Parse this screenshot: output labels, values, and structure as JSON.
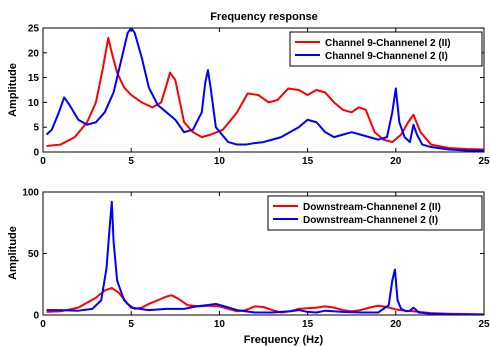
{
  "title": "Frequency response",
  "chart_data": [
    {
      "type": "line",
      "title": "Frequency response",
      "xlabel": "",
      "ylabel": "Amplitude",
      "xlim": [
        0,
        25
      ],
      "ylim": [
        0,
        25
      ],
      "xticks": [
        "0",
        "5",
        "10",
        "15",
        "20",
        "25"
      ],
      "yticks": [
        "0",
        "5",
        "10",
        "15",
        "20",
        "25"
      ],
      "grid": false,
      "legend": "top-right",
      "series": [
        {
          "name": "Channel 9-Channenel 2 (II)",
          "color": "#ff0000",
          "x": [
            0.2,
            1.0,
            1.8,
            2.5,
            3.0,
            3.4,
            3.7,
            3.9,
            4.2,
            4.6,
            5.0,
            5.6,
            6.2,
            6.7,
            7.0,
            7.2,
            7.5,
            8.0,
            8.5,
            9.0,
            9.5,
            10.2,
            11.0,
            11.6,
            12.2,
            12.8,
            13.3,
            13.9,
            14.5,
            15.0,
            15.5,
            16.0,
            16.5,
            17.0,
            17.5,
            17.9,
            18.3,
            18.8,
            19.3,
            19.8,
            20.3,
            20.7,
            21.0,
            21.4,
            22.0,
            23.0,
            24.0,
            25.0
          ],
          "y": [
            1.2,
            1.5,
            3.0,
            6.0,
            10.0,
            17.0,
            23.0,
            20.0,
            16.0,
            13.0,
            11.5,
            10.0,
            9.0,
            10.0,
            13.5,
            16.0,
            14.5,
            6.0,
            4.0,
            3.0,
            3.5,
            4.5,
            8.0,
            11.8,
            11.5,
            10.0,
            10.5,
            12.8,
            12.5,
            11.5,
            12.5,
            12.0,
            10.0,
            8.5,
            8.0,
            9.0,
            8.5,
            4.0,
            2.5,
            2.0,
            3.5,
            6.0,
            7.5,
            4.0,
            1.5,
            0.8,
            0.6,
            0.5
          ]
        },
        {
          "name": "Channel 9-Channenel 2 (I)",
          "color": "#0000ff",
          "x": [
            0.2,
            0.5,
            0.9,
            1.2,
            1.5,
            2.0,
            2.5,
            3.0,
            3.5,
            4.0,
            4.4,
            4.8,
            5.0,
            5.2,
            5.6,
            6.0,
            6.5,
            7.0,
            7.5,
            8.0,
            8.5,
            9.0,
            9.2,
            9.35,
            9.5,
            9.8,
            10.5,
            11.0,
            11.5,
            12.0,
            12.5,
            13.0,
            13.5,
            14.0,
            14.5,
            15.0,
            15.5,
            16.0,
            16.5,
            17.0,
            17.5,
            18.0,
            18.5,
            19.0,
            19.5,
            19.8,
            20.0,
            20.2,
            20.5,
            20.8,
            21.0,
            21.2,
            21.5,
            22.0,
            23.0,
            24.0,
            25.0
          ],
          "y": [
            3.5,
            4.5,
            8.0,
            11.0,
            9.5,
            6.5,
            5.5,
            6.0,
            8.0,
            12.0,
            18.0,
            24.0,
            25.0,
            24.0,
            19.0,
            13.0,
            9.5,
            8.0,
            6.5,
            4.0,
            4.5,
            8.0,
            14.0,
            16.5,
            13.0,
            5.0,
            2.0,
            1.5,
            1.5,
            1.8,
            2.0,
            2.5,
            3.0,
            4.0,
            5.0,
            6.5,
            6.0,
            4.0,
            3.0,
            3.5,
            4.0,
            3.5,
            3.0,
            2.5,
            3.0,
            8.0,
            12.8,
            6.0,
            3.0,
            2.0,
            5.5,
            3.5,
            1.5,
            1.0,
            0.5,
            0.3,
            0.3
          ]
        }
      ]
    },
    {
      "type": "line",
      "title": "",
      "xlabel": "Frequency (Hz)",
      "ylabel": "Amplitude",
      "xlim": [
        0,
        25
      ],
      "ylim": [
        0,
        100
      ],
      "xticks": [
        "0",
        "5",
        "10",
        "15",
        "20",
        "25"
      ],
      "yticks": [
        "0",
        "50",
        "100"
      ],
      "grid": false,
      "legend": "top-right",
      "series": [
        {
          "name": "Downstream-Channenel 2 (II)",
          "color": "#ff0000",
          "x": [
            0.2,
            1.0,
            2.0,
            3.0,
            3.5,
            3.9,
            4.3,
            4.8,
            5.2,
            5.6,
            6.0,
            6.5,
            7.0,
            7.3,
            7.7,
            8.2,
            8.8,
            9.4,
            10.0,
            10.5,
            11.0,
            11.5,
            12.0,
            12.5,
            13.0,
            13.5,
            14.0,
            14.5,
            15.0,
            15.5,
            16.0,
            16.5,
            17.0,
            17.5,
            18.0,
            18.5,
            19.0,
            19.5,
            20.0,
            20.5,
            21.0,
            22.0,
            23.0,
            24.0,
            25.0
          ],
          "y": [
            2.5,
            3.0,
            6.0,
            14.0,
            20.0,
            22.0,
            18.0,
            9.0,
            5.0,
            6.0,
            9.0,
            12.0,
            15.0,
            16.0,
            13.0,
            8.0,
            7.0,
            7.5,
            7.0,
            5.0,
            3.0,
            4.0,
            7.0,
            6.5,
            4.0,
            2.0,
            3.0,
            5.0,
            5.5,
            6.0,
            7.0,
            6.0,
            4.0,
            3.0,
            4.0,
            6.0,
            7.5,
            6.5,
            4.5,
            3.5,
            3.0,
            1.5,
            1.0,
            0.8,
            0.5
          ]
        },
        {
          "name": "Downstream-Channenel 2 (I)",
          "color": "#0000ff",
          "x": [
            0.2,
            1.0,
            2.0,
            2.8,
            3.3,
            3.6,
            3.8,
            3.9,
            4.0,
            4.2,
            4.6,
            5.0,
            6.0,
            7.0,
            8.0,
            8.7,
            9.3,
            9.8,
            10.3,
            11.0,
            12.0,
            13.0,
            14.0,
            14.5,
            15.0,
            15.5,
            16.0,
            17.0,
            18.0,
            19.0,
            19.6,
            19.8,
            19.95,
            20.1,
            20.3,
            20.6,
            20.8,
            21.0,
            21.3,
            22.0,
            23.0,
            24.0,
            25.0
          ],
          "y": [
            4.0,
            4.0,
            3.5,
            5.0,
            12.0,
            38.0,
            75.0,
            92.0,
            60.0,
            28.0,
            12.0,
            6.0,
            4.0,
            5.0,
            5.0,
            7.0,
            8.0,
            9.0,
            7.0,
            4.0,
            2.0,
            2.0,
            3.0,
            4.0,
            2.5,
            2.0,
            3.5,
            2.5,
            2.0,
            2.0,
            8.0,
            28.0,
            37.0,
            12.0,
            5.0,
            3.0,
            3.5,
            6.0,
            2.0,
            1.0,
            0.5,
            0.3,
            0.3
          ]
        }
      ]
    }
  ]
}
